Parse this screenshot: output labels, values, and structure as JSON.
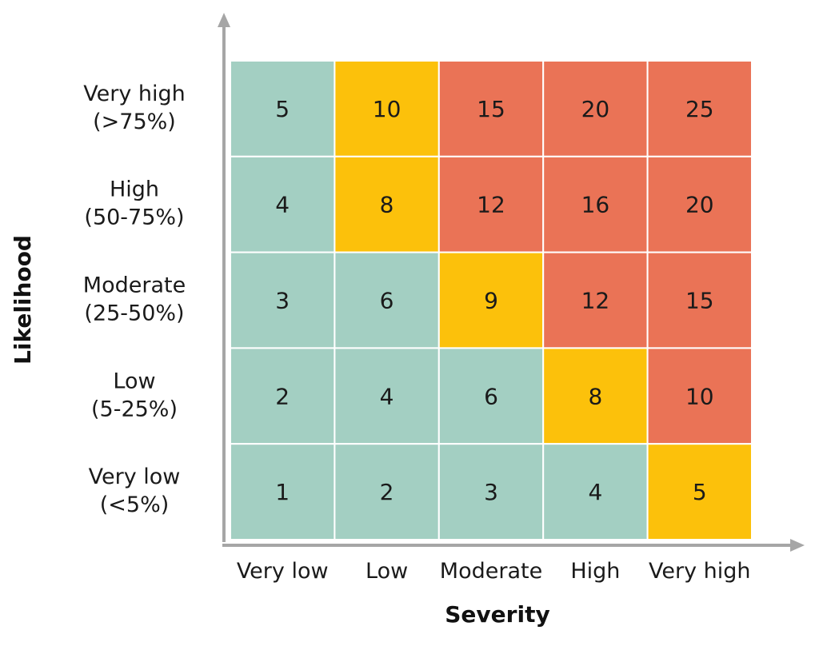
{
  "chart_data": {
    "type": "heatmap",
    "xlabel": "Severity",
    "ylabel": "Likelihood",
    "x_categories": [
      "Very low",
      "Low",
      "Moderate",
      "High",
      "Very high"
    ],
    "y_categories": [
      {
        "line1": "Very high",
        "line2": "(>75%)"
      },
      {
        "line1": "High",
        "line2": "(50-75%)"
      },
      {
        "line1": "Moderate",
        "line2": "(25-50%)"
      },
      {
        "line1": "Low",
        "line2": "(5-25%)"
      },
      {
        "line1": "Very low",
        "line2": "(<5%)"
      }
    ],
    "values": [
      [
        5,
        10,
        15,
        20,
        25
      ],
      [
        4,
        8,
        12,
        16,
        20
      ],
      [
        3,
        6,
        9,
        12,
        15
      ],
      [
        2,
        4,
        6,
        8,
        10
      ],
      [
        1,
        2,
        3,
        4,
        5
      ]
    ],
    "risk_levels": [
      [
        "low",
        "medium",
        "high",
        "high",
        "high"
      ],
      [
        "low",
        "medium",
        "high",
        "high",
        "high"
      ],
      [
        "low",
        "low",
        "medium",
        "high",
        "high"
      ],
      [
        "low",
        "low",
        "low",
        "medium",
        "high"
      ],
      [
        "low",
        "low",
        "low",
        "low",
        "medium"
      ]
    ],
    "colors": {
      "low": "#a3cfc2",
      "medium": "#fcc10b",
      "high": "#ea7356",
      "axis": "#a6a6a6"
    }
  }
}
